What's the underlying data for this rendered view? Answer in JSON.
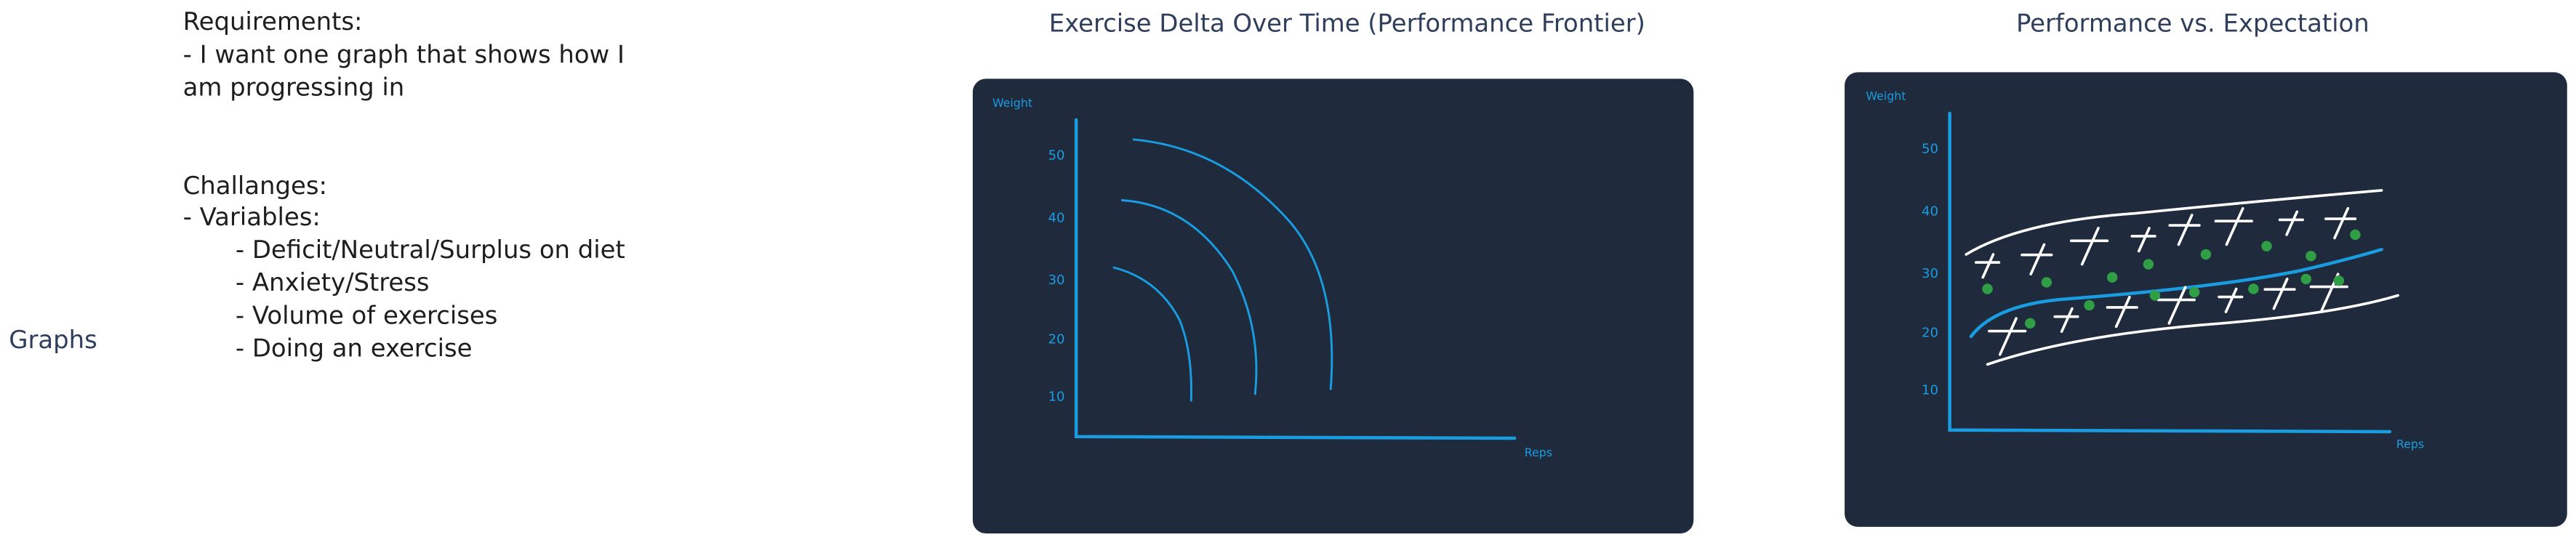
{
  "notes": {
    "label": "Graphs",
    "requirements": [
      "Requirements:",
      "- I want one graph that shows how I",
      "am progressing in"
    ],
    "challenges": [
      "Challanges:",
      "- Variables:"
    ],
    "variables": [
      "- Deficit/Neutral/Surplus on diet",
      "- Anxiety/Stress",
      "- Volume of exercises",
      "- Doing an exercise"
    ]
  },
  "panels": [
    {
      "title": "Exercise Delta Over Time (Performance Frontier)",
      "y_axis_label": "Weight",
      "x_axis_label": "Reps",
      "y_ticks": [
        "50",
        "40",
        "30",
        "20",
        "10"
      ]
    },
    {
      "title": "Performance vs. Expectation",
      "y_axis_label": "Weight",
      "x_axis_label": "Reps",
      "y_ticks": [
        "50",
        "40",
        "30",
        "20",
        "10"
      ]
    }
  ]
}
